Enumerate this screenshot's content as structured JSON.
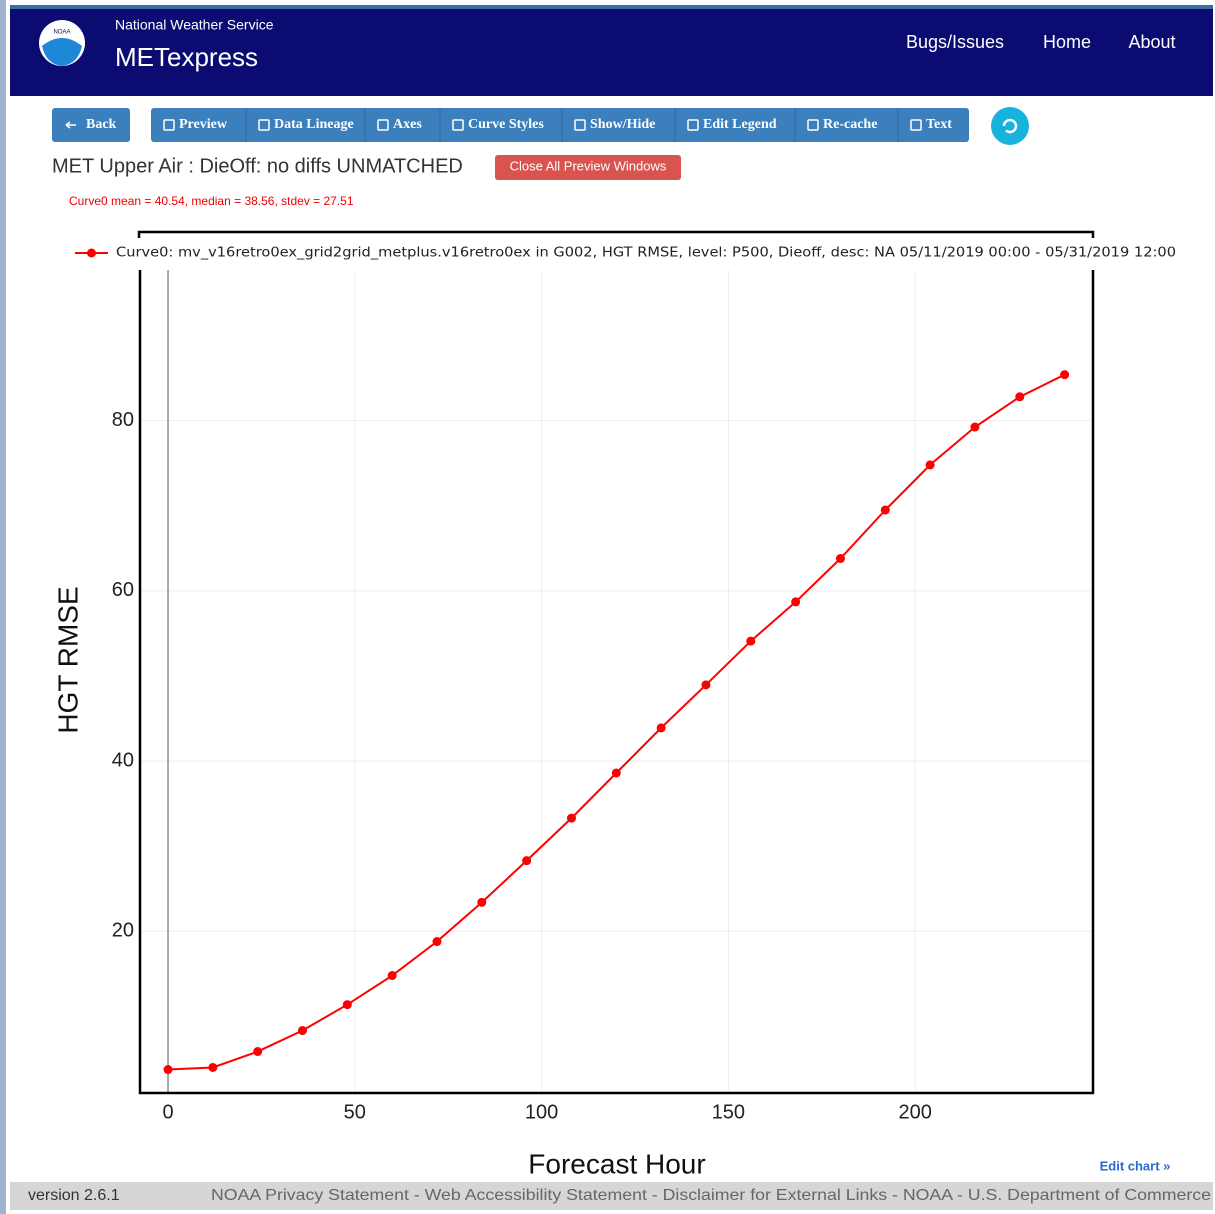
{
  "header": {
    "logo_text": "NOAA",
    "org": "National Weather Service",
    "app": "METexpress",
    "nav": [
      "Bugs/Issues",
      "Home",
      "About"
    ]
  },
  "toolbar": {
    "back": "Back",
    "buttons": [
      "Preview",
      "Data Lineage",
      "Axes",
      "Curve Styles",
      "Show/Hide",
      "Edit Legend",
      "Re-cache",
      "Text"
    ]
  },
  "heading": {
    "title": "MET Upper Air : DieOff: no diffs UNMATCHED",
    "close_button": "Close All Preview Windows"
  },
  "stats": "Curve0 mean = 40.54, median = 38.56, stdev = 27.51",
  "chart_data": {
    "type": "line",
    "x_label": "Forecast Hour",
    "y_label": "HGT RMSE",
    "x": [
      0,
      12,
      24,
      36,
      48,
      60,
      72,
      84,
      96,
      108,
      120,
      132,
      144,
      156,
      168,
      180,
      192,
      204,
      216,
      228,
      240
    ],
    "series": [
      {
        "name": "Curve0: mv_v16retro0ex_grid2grid_metplus.v16retro0ex in G002, HGT RMSE, level: P500, Dieoff, desc: NA 05/11/2019 00:00 - 05/31/2019 12:00",
        "color": "#ff0000",
        "values": [
          3.76,
          4.0,
          5.87,
          8.34,
          11.39,
          14.8,
          18.8,
          23.4,
          28.3,
          33.3,
          38.6,
          43.9,
          48.96,
          54.1,
          58.7,
          63.8,
          69.5,
          74.8,
          79.25,
          82.8,
          85.4
        ]
      }
    ],
    "xlim": [
      -7.5,
      247.6
    ],
    "ylim": [
      1,
      97.7
    ],
    "xticks": [
      0,
      50,
      100,
      150,
      200
    ],
    "yticks": [
      20,
      40,
      60,
      80
    ],
    "grid": true,
    "legend": "top"
  },
  "edit_chart": "Edit chart »",
  "footer": {
    "version": "version 2.6.1",
    "links": "NOAA Privacy Statement - Web Accessibility Statement - Disclaimer for External Links - NOAA - U.S. Department of Commerce"
  }
}
